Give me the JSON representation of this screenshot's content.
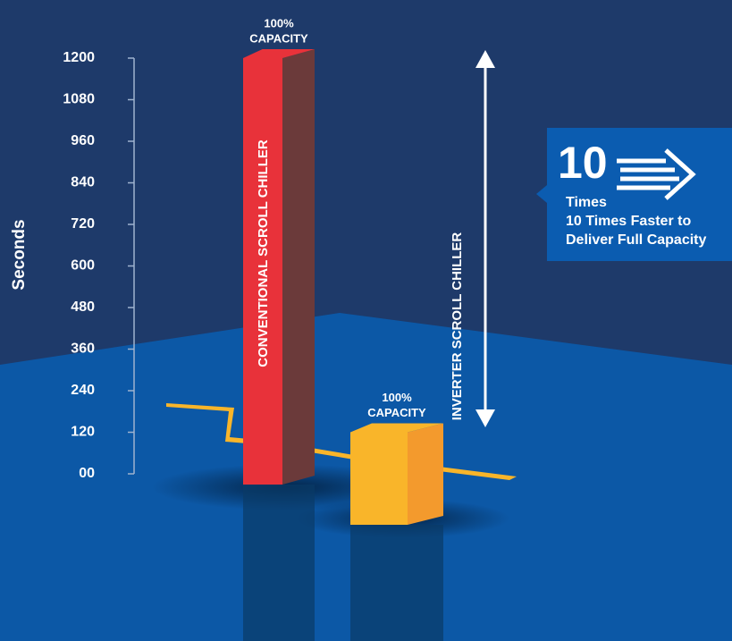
{
  "chart_data": {
    "type": "bar3d",
    "y_label": "Seconds",
    "categories": [
      "CONVENTIONAL SCROLL CHILLER",
      "INVERTER SCROLL CHILLER"
    ],
    "values": [
      1200,
      120
    ],
    "colors": [
      "#e8323a",
      "#f9b52a"
    ],
    "annotations": [
      [
        "100%",
        "CAPACITY"
      ],
      [
        "100%",
        "CAPACITY"
      ]
    ],
    "ylim": [
      0,
      1200
    ],
    "yticks": [
      {
        "value": 0,
        "label": "00"
      },
      120,
      240,
      360,
      480,
      600,
      720,
      840,
      960,
      1080,
      1200
    ],
    "callout": {
      "number": "10",
      "unit": "Times",
      "lines": [
        "10 Times Faster to",
        "Deliver Full Capacity"
      ]
    }
  }
}
